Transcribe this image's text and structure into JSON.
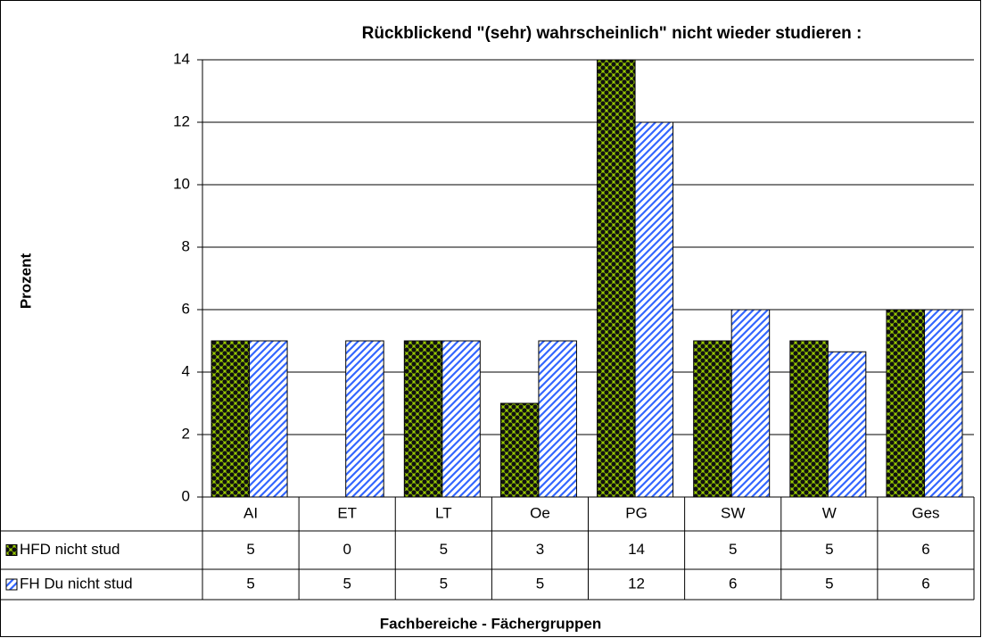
{
  "chart_data": {
    "type": "bar",
    "title": "Rückblickend \"(sehr) wahrscheinlich\" nicht wieder studieren :",
    "y_label": "Prozent",
    "x_label": "Fachbereiche  -  Fächergruppen",
    "categories": [
      "AI",
      "ET",
      "LT",
      "Oe",
      "PG",
      "SW",
      "W",
      "Ges"
    ],
    "series": [
      {
        "name": "HFD nicht stud",
        "color": "#99cc00",
        "values": [
          5,
          0,
          5,
          3,
          14,
          5,
          5,
          6
        ],
        "value_labels": [
          "5",
          "0",
          "5",
          "3",
          "14",
          "5",
          "5",
          "6"
        ]
      },
      {
        "name": "FH Du nicht stud",
        "color": "#3366ff",
        "values": [
          5,
          5,
          5,
          5,
          12,
          6,
          4.65,
          6
        ],
        "value_labels": [
          "5",
          "5",
          "5",
          "5",
          "12",
          "6",
          "5",
          "6"
        ]
      }
    ],
    "ylim": [
      0,
      14
    ],
    "yticks": [
      0,
      2,
      4,
      6,
      8,
      10,
      12,
      14
    ],
    "grid": true
  }
}
